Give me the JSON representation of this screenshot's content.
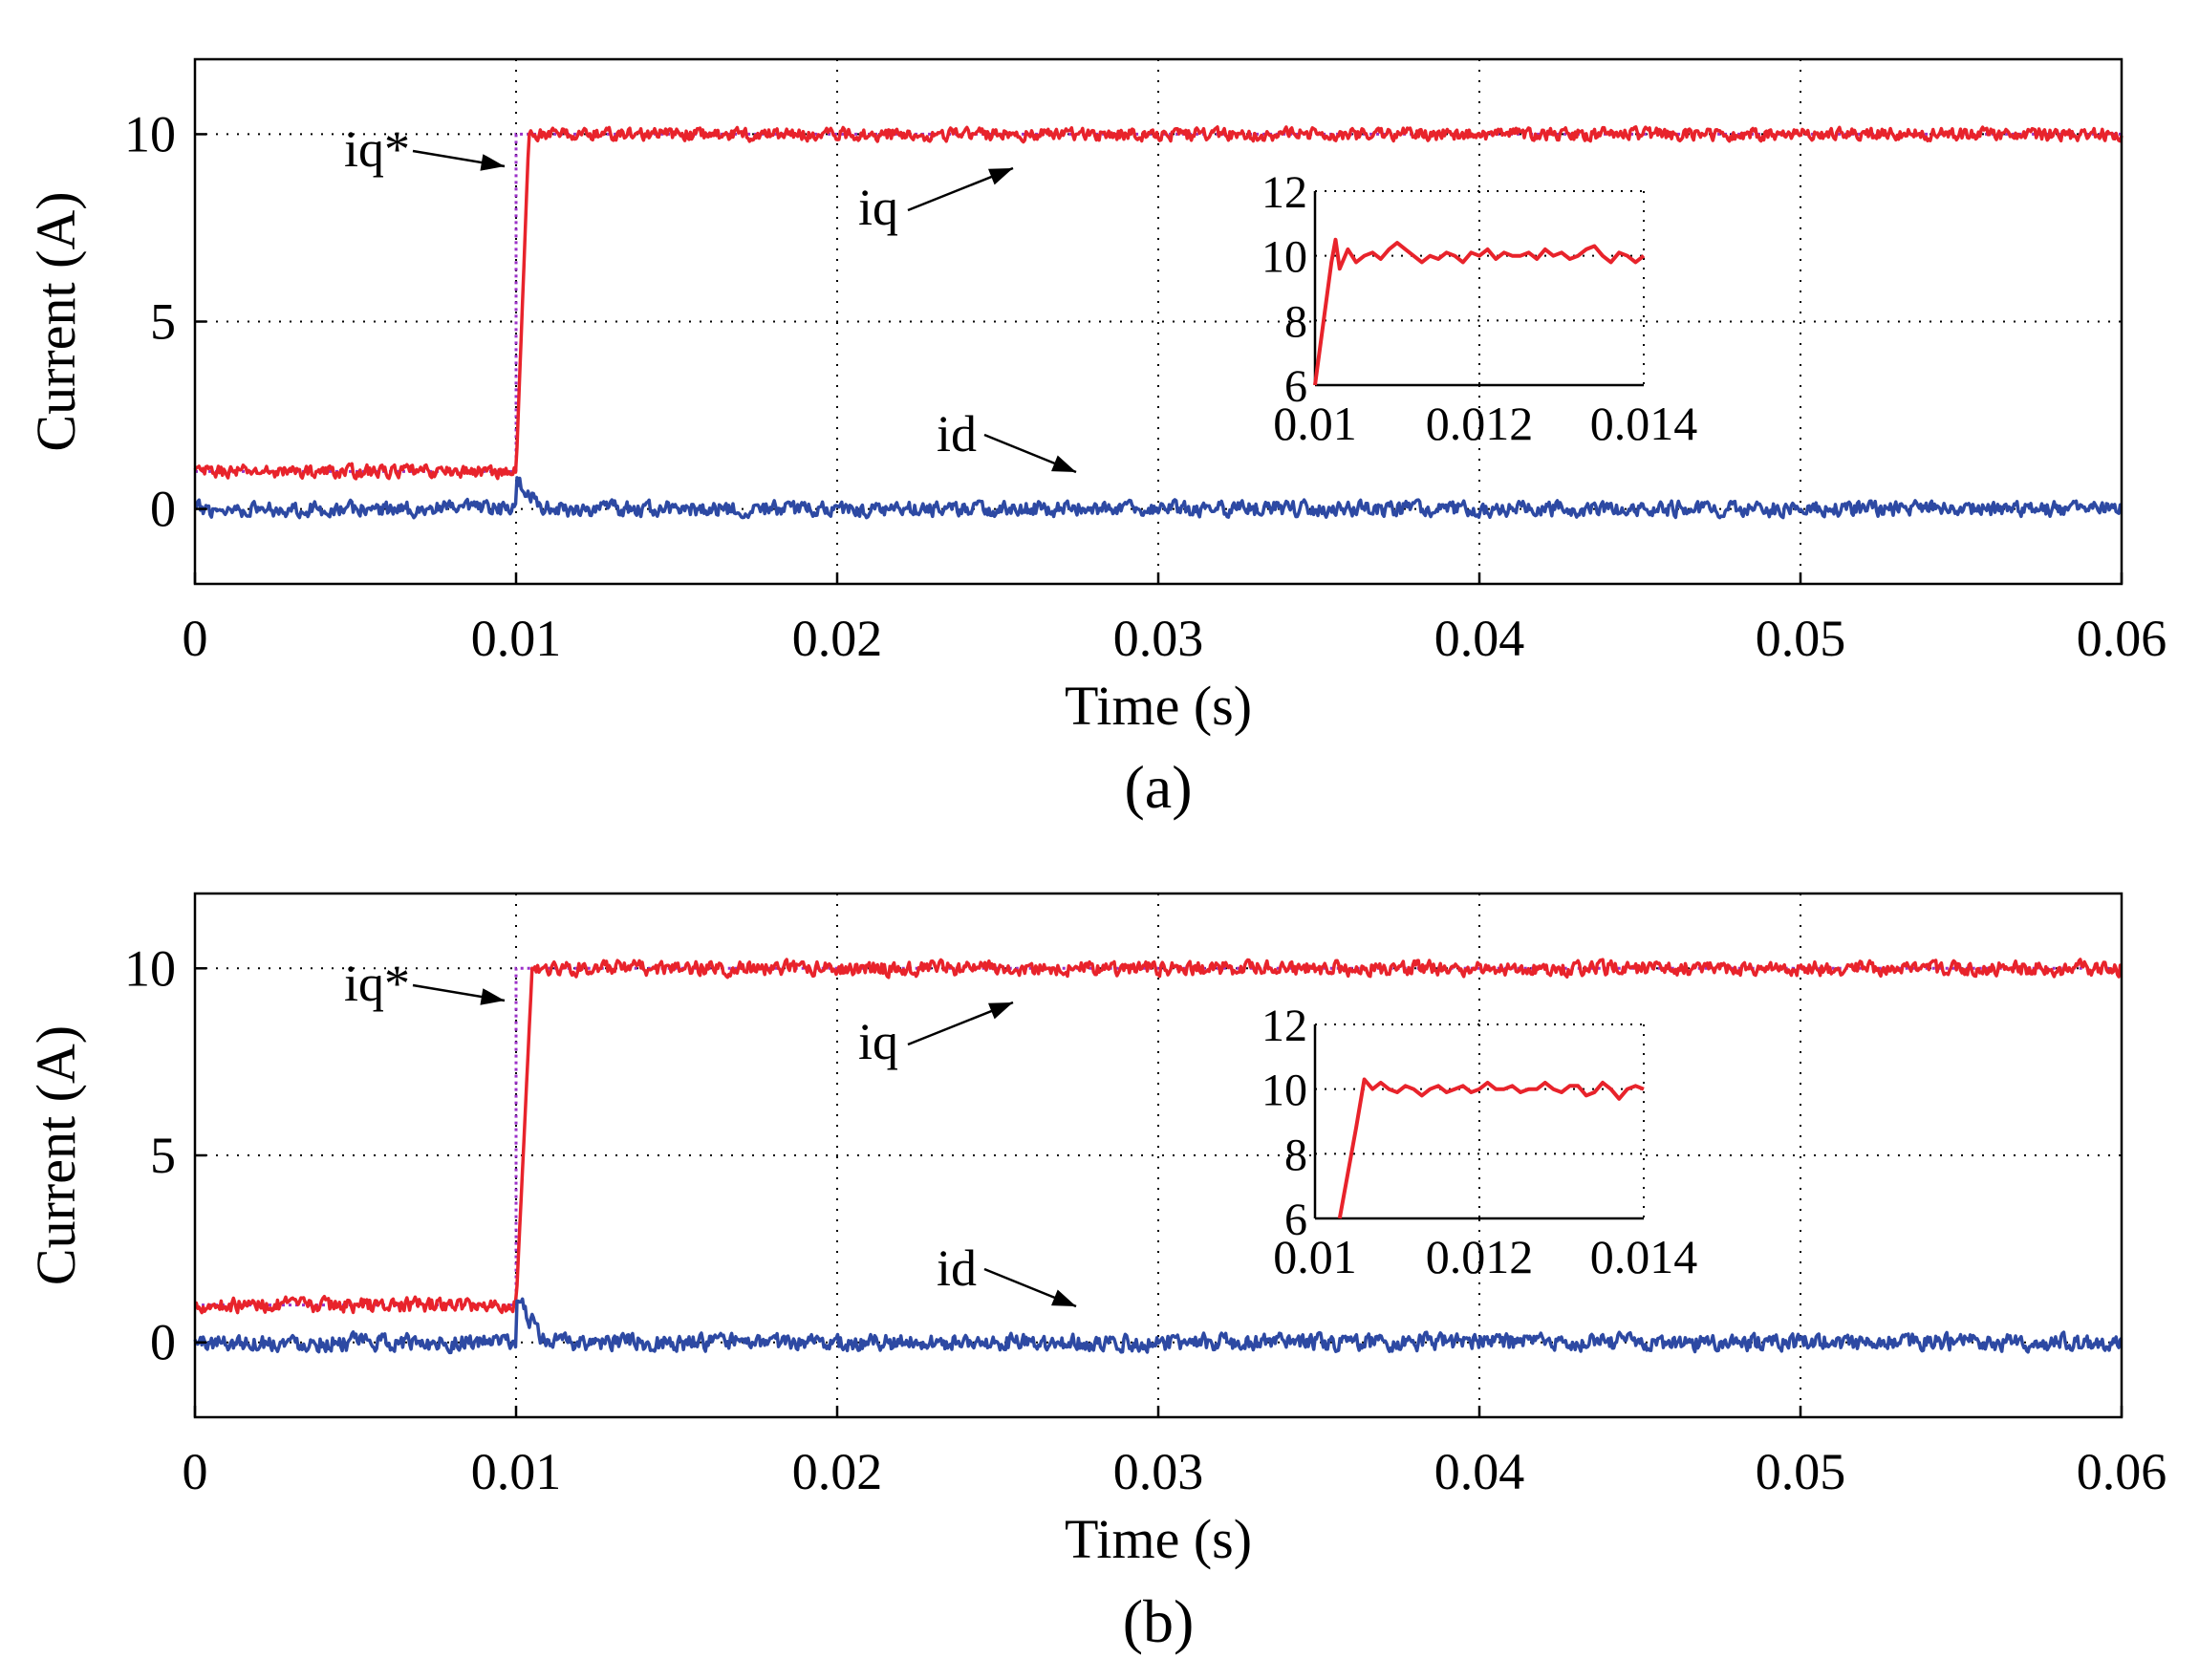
{
  "chart_data": [
    {
      "type": "line",
      "caption": "(a)",
      "xlabel": "Time (s)",
      "ylabel": "Current (A)",
      "xlim": [
        0,
        0.06
      ],
      "ylim": [
        -2,
        12
      ],
      "x_ticks": [
        0,
        0.01,
        0.02,
        0.03,
        0.04,
        0.05,
        0.06
      ],
      "x_tick_labels": [
        "0",
        "0.01",
        "0.02",
        "0.03",
        "0.04",
        "0.05",
        "0.06"
      ],
      "y_ticks": [
        0,
        5,
        10
      ],
      "y_tick_labels": [
        "0",
        "5",
        "10"
      ],
      "grid": true,
      "step_time": 0.01,
      "series": [
        {
          "name": "iq*",
          "color": "#9b30c8",
          "style": "dotted",
          "initial": 1,
          "final": 10
        },
        {
          "name": "iq",
          "color": "#e8232b",
          "initial": 1,
          "final": 10,
          "rise_end": 0.0104,
          "noise": 0.15
        },
        {
          "name": "id",
          "color": "#2d49a3",
          "initial": 0,
          "final": 0,
          "noise": 0.18,
          "spike": 0.8
        }
      ],
      "annotations": [
        "iq*",
        "iq",
        "id"
      ],
      "inset": {
        "xlim": [
          0.01,
          0.014
        ],
        "ylim": [
          6,
          12
        ],
        "x_ticks": [
          0.01,
          0.012,
          0.014
        ],
        "x_tick_labels": [
          "0.01",
          "0.012",
          "0.014"
        ],
        "y_ticks": [
          6,
          8,
          10,
          12
        ],
        "y_tick_labels": [
          "6",
          "8",
          "10",
          "12"
        ],
        "series": {
          "name": "iq",
          "x": [
            0.01,
            0.0101,
            0.0102,
            0.01025,
            0.0103,
            0.0104,
            0.0105,
            0.0106,
            0.0107,
            0.0108,
            0.0109,
            0.011,
            0.0111,
            0.0112,
            0.0113,
            0.0114,
            0.0115,
            0.0116,
            0.0117,
            0.0118,
            0.0119,
            0.012,
            0.0121,
            0.0122,
            0.0123,
            0.0124,
            0.0125,
            0.0126,
            0.0127,
            0.0128,
            0.0129,
            0.013,
            0.0131,
            0.0132,
            0.0133,
            0.0134,
            0.0135,
            0.0136,
            0.0137,
            0.0138,
            0.0139,
            0.014
          ],
          "values": [
            6,
            7.9,
            9.8,
            10.5,
            9.6,
            10.2,
            9.8,
            10.0,
            10.1,
            9.9,
            10.2,
            10.4,
            10.2,
            10.0,
            9.8,
            10.0,
            9.9,
            10.1,
            10.0,
            9.8,
            10.1,
            10.0,
            10.2,
            9.9,
            10.1,
            10.0,
            10.0,
            10.1,
            9.9,
            10.2,
            10.0,
            10.1,
            9.9,
            10.0,
            10.2,
            10.3,
            10.0,
            9.8,
            10.1,
            10.0,
            9.8,
            10.0
          ]
        }
      }
    },
    {
      "type": "line",
      "caption": "(b)",
      "xlabel": "Time (s)",
      "ylabel": "Current (A)",
      "xlim": [
        0,
        0.06
      ],
      "ylim": [
        -2,
        12
      ],
      "x_ticks": [
        0,
        0.01,
        0.02,
        0.03,
        0.04,
        0.05,
        0.06
      ],
      "x_tick_labels": [
        "0",
        "0.01",
        "0.02",
        "0.03",
        "0.04",
        "0.05",
        "0.06"
      ],
      "y_ticks": [
        0,
        5,
        10
      ],
      "y_tick_labels": [
        "0",
        "5",
        "10"
      ],
      "grid": true,
      "step_time": 0.01,
      "series": [
        {
          "name": "iq*",
          "color": "#9b30c8",
          "style": "dotted",
          "initial": 1,
          "final": 10
        },
        {
          "name": "iq",
          "color": "#e8232b",
          "initial": 1,
          "final": 10,
          "rise_end": 0.0105,
          "noise": 0.17
        },
        {
          "name": "id",
          "color": "#2d49a3",
          "initial": 0,
          "final": 0,
          "noise": 0.2,
          "spike": 1.2
        }
      ],
      "annotations": [
        "iq*",
        "iq",
        "id"
      ],
      "inset": {
        "xlim": [
          0.01,
          0.014
        ],
        "ylim": [
          6,
          12
        ],
        "x_ticks": [
          0.01,
          0.012,
          0.014
        ],
        "x_tick_labels": [
          "0.01",
          "0.012",
          "0.014"
        ],
        "y_ticks": [
          6,
          8,
          10,
          12
        ],
        "y_tick_labels": [
          "6",
          "8",
          "10",
          "12"
        ],
        "series": {
          "name": "iq",
          "x": [
            0.0103,
            0.0104,
            0.0105,
            0.0106,
            0.0107,
            0.0108,
            0.0109,
            0.011,
            0.0111,
            0.0112,
            0.0113,
            0.0114,
            0.0115,
            0.0116,
            0.0117,
            0.0118,
            0.0119,
            0.012,
            0.0121,
            0.0122,
            0.0123,
            0.0124,
            0.0125,
            0.0126,
            0.0127,
            0.0128,
            0.0129,
            0.013,
            0.0131,
            0.0132,
            0.0133,
            0.0134,
            0.0135,
            0.0136,
            0.0137,
            0.0138,
            0.0139,
            0.014
          ],
          "values": [
            6,
            7.4,
            8.8,
            10.3,
            10.0,
            10.2,
            10.0,
            9.9,
            10.1,
            10.0,
            9.8,
            10.0,
            10.1,
            9.9,
            10.0,
            10.1,
            9.9,
            10.0,
            10.2,
            10.0,
            10.0,
            10.1,
            9.9,
            10.0,
            10.0,
            10.2,
            10.0,
            9.9,
            10.1,
            10.1,
            9.8,
            9.9,
            10.2,
            10.0,
            9.7,
            10.0,
            10.1,
            10.0
          ]
        }
      }
    }
  ]
}
